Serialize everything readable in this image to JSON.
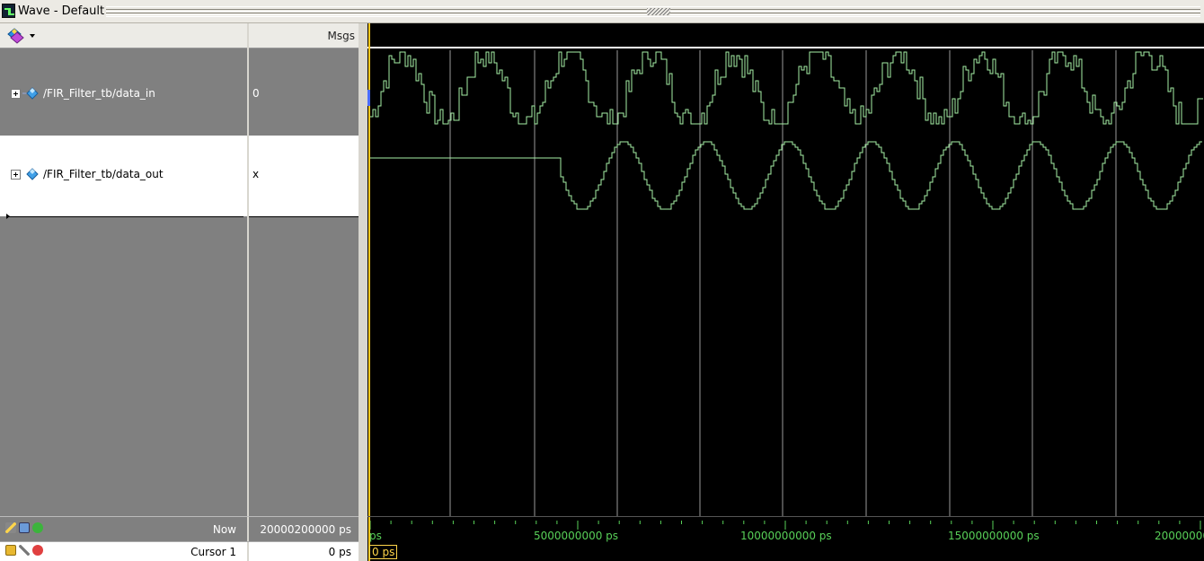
{
  "window": {
    "title": "Wave - Default"
  },
  "columns": {
    "msgs_header": "Msgs"
  },
  "signals": [
    {
      "name": "/FIR_Filter_tb/data_in",
      "value": "0"
    },
    {
      "name": "/FIR_Filter_tb/data_out",
      "value": "x"
    }
  ],
  "status": {
    "now_label": "Now",
    "now_value": "20000200000 ps",
    "cursor_label": "Cursor 1",
    "cursor_value": "0 ps"
  },
  "timeline": {
    "labels": [
      "ps",
      "5000000000 ps",
      "10000000000 ps",
      "15000000000 ps",
      "20000000"
    ],
    "cursor_time": "0 ps"
  },
  "colors": {
    "wave": "#a6f0a6",
    "grid": "#9a9a9a",
    "cursor": "#ffc81e",
    "timeline_text": "#58d058"
  }
}
